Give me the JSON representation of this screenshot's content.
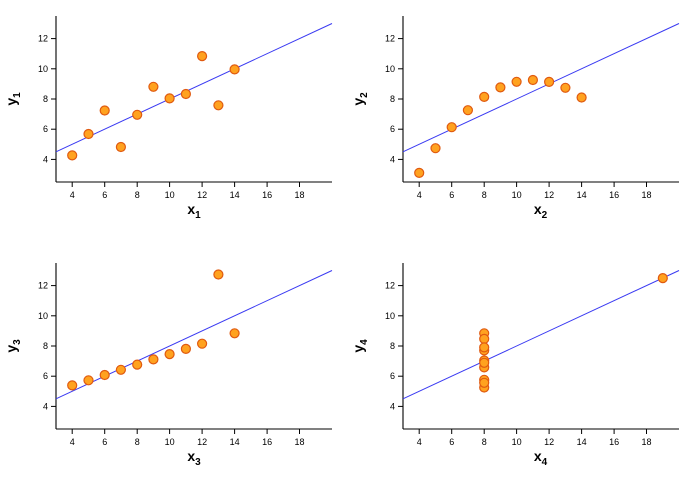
{
  "figure": {
    "background": "#ffffff",
    "colors": {
      "point_fill": "#ffa21f",
      "point_stroke": "#e05a10",
      "line": "#3a3af2",
      "axis": "#000000",
      "tick_text": "#000000"
    }
  },
  "chart_data": [
    {
      "type": "scatter",
      "title": "",
      "xlabel_base": "x",
      "xlabel_sub": "1",
      "ylabel_base": "y",
      "ylabel_sub": "1",
      "x": [
        10,
        8,
        13,
        9,
        11,
        14,
        6,
        4,
        12,
        7,
        5
      ],
      "y": [
        8.04,
        6.95,
        7.58,
        8.81,
        8.33,
        9.96,
        7.24,
        4.26,
        10.84,
        4.82,
        5.68
      ],
      "x_ticks": [
        4,
        6,
        8,
        10,
        12,
        14,
        16,
        18
      ],
      "y_ticks": [
        4,
        6,
        8,
        10,
        12
      ],
      "xlim": [
        3,
        20
      ],
      "ylim": [
        2.5,
        13.5
      ],
      "grid": false,
      "legend": false,
      "fit_line": {
        "intercept": 3.0,
        "slope": 0.5
      }
    },
    {
      "type": "scatter",
      "title": "",
      "xlabel_base": "x",
      "xlabel_sub": "2",
      "ylabel_base": "y",
      "ylabel_sub": "2",
      "x": [
        10,
        8,
        13,
        9,
        11,
        14,
        6,
        4,
        12,
        7,
        5
      ],
      "y": [
        9.14,
        8.14,
        8.74,
        8.77,
        9.26,
        8.1,
        6.13,
        3.1,
        9.13,
        7.26,
        4.74
      ],
      "x_ticks": [
        4,
        6,
        8,
        10,
        12,
        14,
        16,
        18
      ],
      "y_ticks": [
        4,
        6,
        8,
        10,
        12
      ],
      "xlim": [
        3,
        20
      ],
      "ylim": [
        2.5,
        13.5
      ],
      "grid": false,
      "legend": false,
      "fit_line": {
        "intercept": 3.0,
        "slope": 0.5
      }
    },
    {
      "type": "scatter",
      "title": "",
      "xlabel_base": "x",
      "xlabel_sub": "3",
      "ylabel_base": "y",
      "ylabel_sub": "3",
      "x": [
        10,
        8,
        13,
        9,
        11,
        14,
        6,
        4,
        12,
        7,
        5
      ],
      "y": [
        7.46,
        6.77,
        12.74,
        7.11,
        7.81,
        8.84,
        6.08,
        5.39,
        8.15,
        6.42,
        5.73
      ],
      "x_ticks": [
        4,
        6,
        8,
        10,
        12,
        14,
        16,
        18
      ],
      "y_ticks": [
        4,
        6,
        8,
        10,
        12
      ],
      "xlim": [
        3,
        20
      ],
      "ylim": [
        2.5,
        13.5
      ],
      "grid": false,
      "legend": false,
      "fit_line": {
        "intercept": 3.0,
        "slope": 0.5
      }
    },
    {
      "type": "scatter",
      "title": "",
      "xlabel_base": "x",
      "xlabel_sub": "4",
      "ylabel_base": "y",
      "ylabel_sub": "4",
      "x": [
        8,
        8,
        8,
        8,
        8,
        8,
        8,
        19,
        8,
        8,
        8
      ],
      "y": [
        6.58,
        5.76,
        7.71,
        8.84,
        8.47,
        7.04,
        5.25,
        12.5,
        5.56,
        7.91,
        6.89
      ],
      "x_ticks": [
        4,
        6,
        8,
        10,
        12,
        14,
        16,
        18
      ],
      "y_ticks": [
        4,
        6,
        8,
        10,
        12
      ],
      "xlim": [
        3,
        20
      ],
      "ylim": [
        2.5,
        13.5
      ],
      "grid": false,
      "legend": false,
      "fit_line": {
        "intercept": 3.0,
        "slope": 0.5
      }
    }
  ]
}
